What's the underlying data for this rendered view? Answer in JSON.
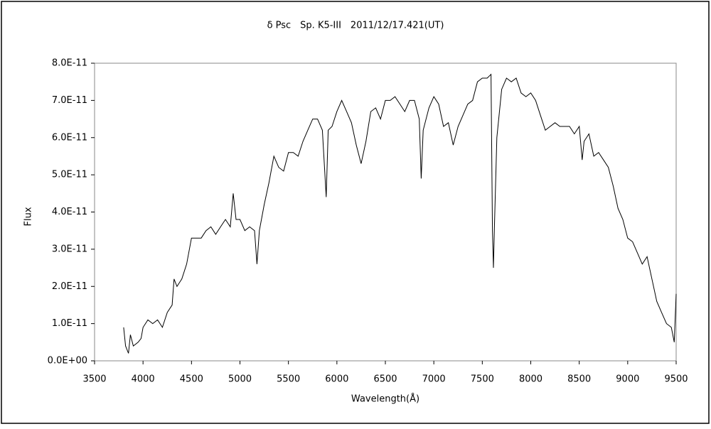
{
  "chart_data": {
    "type": "line",
    "title": "δ Psc　Sp. K5-III　2011/12/17.421(UT)",
    "xlabel": "Wavelength(Å)",
    "ylabel": "Flux",
    "x": [
      3800,
      3820,
      3850,
      3870,
      3900,
      3950,
      3980,
      4000,
      4050,
      4100,
      4150,
      4200,
      4250,
      4300,
      4320,
      4350,
      4400,
      4450,
      4500,
      4550,
      4600,
      4650,
      4700,
      4750,
      4800,
      4850,
      4900,
      4930,
      4960,
      5000,
      5050,
      5100,
      5150,
      5175,
      5200,
      5250,
      5300,
      5350,
      5400,
      5450,
      5500,
      5550,
      5600,
      5650,
      5700,
      5750,
      5800,
      5850,
      5890,
      5910,
      5950,
      6000,
      6050,
      6100,
      6150,
      6200,
      6250,
      6300,
      6350,
      6400,
      6450,
      6500,
      6550,
      6600,
      6650,
      6700,
      6750,
      6800,
      6850,
      6870,
      6890,
      6950,
      7000,
      7050,
      7100,
      7150,
      7200,
      7250,
      7300,
      7350,
      7400,
      7450,
      7500,
      7550,
      7590,
      7605,
      7615,
      7625,
      7650,
      7700,
      7750,
      7800,
      7850,
      7900,
      7950,
      8000,
      8050,
      8100,
      8150,
      8200,
      8250,
      8300,
      8350,
      8400,
      8450,
      8500,
      8530,
      8550,
      8600,
      8650,
      8700,
      8750,
      8800,
      8850,
      8900,
      8950,
      9000,
      9050,
      9100,
      9150,
      9200,
      9250,
      9300,
      9350,
      9400,
      9450,
      9480,
      9500
    ],
    "series": [
      {
        "color": "#000000",
        "values": [
          9e-12,
          4e-12,
          2e-12,
          7e-12,
          4e-12,
          5e-12,
          6e-12,
          9e-12,
          1.1e-11,
          1e-11,
          1.1e-11,
          9e-12,
          1.3e-11,
          1.5e-11,
          2.2e-11,
          2e-11,
          2.2e-11,
          2.6e-11,
          3.3e-11,
          3.3e-11,
          3.3e-11,
          3.5e-11,
          3.6e-11,
          3.4e-11,
          3.6e-11,
          3.8e-11,
          3.6e-11,
          4.5e-11,
          3.8e-11,
          3.8e-11,
          3.5e-11,
          3.6e-11,
          3.5e-11,
          2.6e-11,
          3.5e-11,
          4.2e-11,
          4.8e-11,
          5.5e-11,
          5.2e-11,
          5.1e-11,
          5.6e-11,
          5.6e-11,
          5.5e-11,
          5.9e-11,
          6.2e-11,
          6.5e-11,
          6.5e-11,
          6.2e-11,
          4.4e-11,
          6.2e-11,
          6.3e-11,
          6.7e-11,
          7e-11,
          6.7e-11,
          6.4e-11,
          5.8e-11,
          5.3e-11,
          5.9e-11,
          6.7e-11,
          6.8e-11,
          6.5e-11,
          7e-11,
          7e-11,
          7.1e-11,
          6.9e-11,
          6.7e-11,
          7e-11,
          7e-11,
          6.5e-11,
          4.9e-11,
          6.2e-11,
          6.8e-11,
          7.1e-11,
          6.9e-11,
          6.3e-11,
          6.4e-11,
          5.8e-11,
          6.3e-11,
          6.6e-11,
          6.9e-11,
          7e-11,
          7.5e-11,
          7.6e-11,
          7.6e-11,
          7.7e-11,
          3.5e-11,
          2.5e-11,
          3.6e-11,
          6e-11,
          7.3e-11,
          7.6e-11,
          7.5e-11,
          7.6e-11,
          7.2e-11,
          7.1e-11,
          7.2e-11,
          7e-11,
          6.6e-11,
          6.2e-11,
          6.3e-11,
          6.4e-11,
          6.3e-11,
          6.3e-11,
          6.3e-11,
          6.1e-11,
          6.3e-11,
          5.4e-11,
          5.9e-11,
          6.1e-11,
          5.5e-11,
          5.6e-11,
          5.4e-11,
          5.2e-11,
          4.7e-11,
          4.1e-11,
          3.8e-11,
          3.3e-11,
          3.2e-11,
          2.9e-11,
          2.6e-11,
          2.8e-11,
          2.2e-11,
          1.6e-11,
          1.3e-11,
          1e-11,
          9e-12,
          5e-12,
          1.8e-11
        ]
      }
    ],
    "xlim": [
      3500,
      9500
    ],
    "xticks": [
      3500,
      4000,
      4500,
      5000,
      5500,
      6000,
      6500,
      7000,
      7500,
      8000,
      8500,
      9000,
      9500
    ],
    "ylim": [
      0,
      8e-11
    ],
    "yticks": [
      {
        "value": 0,
        "label": "0.0E+00"
      },
      {
        "value": 1e-11,
        "label": "1.0E-11"
      },
      {
        "value": 2e-11,
        "label": "2.0E-11"
      },
      {
        "value": 3e-11,
        "label": "3.0E-11"
      },
      {
        "value": 4e-11,
        "label": "4.0E-11"
      },
      {
        "value": 5e-11,
        "label": "5.0E-11"
      },
      {
        "value": 6e-11,
        "label": "6.0E-11"
      },
      {
        "value": 7e-11,
        "label": "7.0E-11"
      },
      {
        "value": 8e-11,
        "label": "8.0E-11"
      }
    ]
  }
}
